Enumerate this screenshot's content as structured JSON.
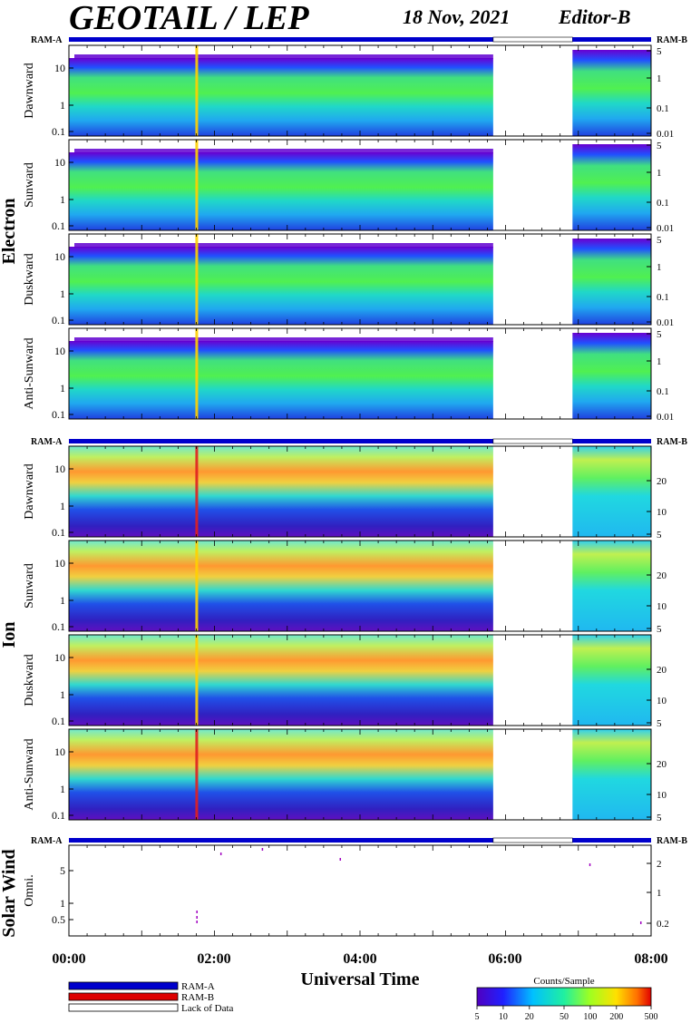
{
  "header": {
    "title": "GEOTAIL / LEP",
    "date": "18 Nov, 2021",
    "editor": "Editor-B"
  },
  "mode_labels": {
    "left": "RAM-A",
    "right": "RAM-B"
  },
  "groups": [
    {
      "label": "Electron",
      "channels": [
        "Dawnward",
        "Sunward",
        "Duskward",
        "Anti-Sunward"
      ],
      "left_ticks": [
        "10",
        "1",
        "0.1"
      ],
      "right_ticks": [
        "5",
        "1",
        "0.1",
        "0.01"
      ]
    },
    {
      "label": "Ion",
      "channels": [
        "Dawnward",
        "Sunward",
        "Duskward",
        "Anti-Sunward"
      ],
      "left_ticks": [
        "10",
        "1",
        "0.1"
      ],
      "right_ticks": [
        "20",
        "10",
        "5"
      ]
    },
    {
      "label": "Solar Wind",
      "channels": [
        "Omni."
      ],
      "left_ticks": [
        "5",
        "1",
        "0.5"
      ],
      "right_ticks": [
        "2",
        "1",
        "0.2"
      ]
    }
  ],
  "time_axis": {
    "label": "Universal Time",
    "ticks": [
      "00:00",
      "02:00",
      "04:00",
      "06:00",
      "08:00"
    ],
    "range_hours": [
      0,
      8
    ],
    "data_gap_hours": [
      5.83,
      6.92
    ],
    "spike_hour": 1.75
  },
  "legend": {
    "items": [
      {
        "label": "RAM-A",
        "color": "#0000cc"
      },
      {
        "label": "RAM-B",
        "color": "#dd0000"
      },
      {
        "label": "Lack of Data",
        "color": "#ffffff"
      }
    ]
  },
  "colorbar": {
    "title": "Counts/Sample",
    "ticks": [
      "5",
      "10",
      "20",
      "50",
      "100",
      "200",
      "500"
    ],
    "range": [
      5,
      500
    ],
    "scale": "log"
  },
  "colors": {
    "background": "#ffffff",
    "ram_a": "#0000cc",
    "ram_b": "#dd0000"
  },
  "chart_data": {
    "type": "heatmap",
    "title": "GEOTAIL / LEP",
    "xlabel": "Universal Time",
    "x_range_hours": [
      0,
      8
    ],
    "missing_data_hours": [
      5.83,
      6.92
    ],
    "color_scale": {
      "label": "Counts/Sample",
      "min": 5,
      "max": 500,
      "scale": "log"
    },
    "panels": [
      {
        "group": "Electron",
        "channel": "Dawnward"
      },
      {
        "group": "Electron",
        "channel": "Sunward"
      },
      {
        "group": "Electron",
        "channel": "Duskward"
      },
      {
        "group": "Electron",
        "channel": "Anti-Sunward"
      },
      {
        "group": "Ion",
        "channel": "Dawnward"
      },
      {
        "group": "Ion",
        "channel": "Sunward"
      },
      {
        "group": "Ion",
        "channel": "Duskward"
      },
      {
        "group": "Ion",
        "channel": "Anti-Sunward"
      },
      {
        "group": "Solar Wind",
        "channel": "Omni."
      }
    ]
  }
}
